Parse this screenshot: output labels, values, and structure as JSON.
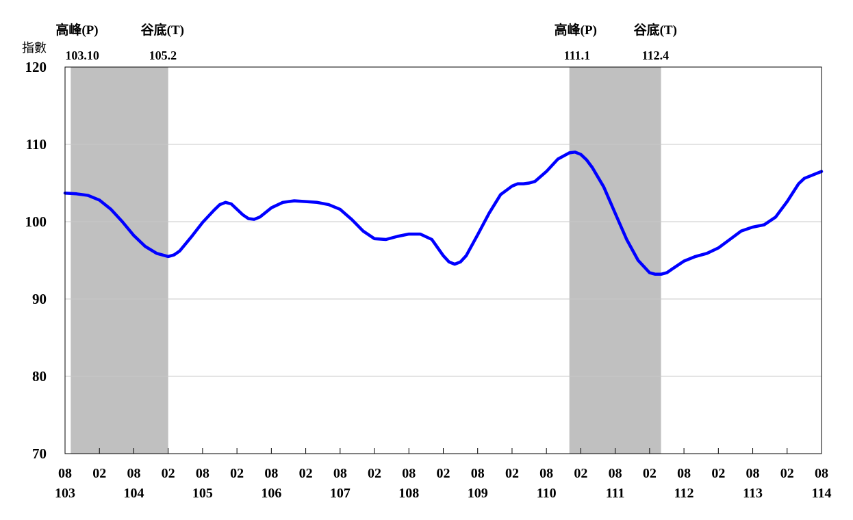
{
  "chart_data": {
    "type": "line",
    "ylabel": "指數",
    "ylim": [
      70,
      120
    ],
    "yticks": [
      70,
      80,
      90,
      100,
      110,
      120
    ],
    "grid": true,
    "x_start": "103-08",
    "x_end": "114-08",
    "x_ticks": [
      {
        "month": "08",
        "year": "103"
      },
      {
        "month": "02",
        "year": ""
      },
      {
        "month": "08",
        "year": "104"
      },
      {
        "month": "02",
        "year": ""
      },
      {
        "month": "08",
        "year": "105"
      },
      {
        "month": "02",
        "year": ""
      },
      {
        "month": "08",
        "year": "106"
      },
      {
        "month": "02",
        "year": ""
      },
      {
        "month": "08",
        "year": "107"
      },
      {
        "month": "02",
        "year": ""
      },
      {
        "month": "08",
        "year": "108"
      },
      {
        "month": "02",
        "year": ""
      },
      {
        "month": "08",
        "year": "109"
      },
      {
        "month": "02",
        "year": ""
      },
      {
        "month": "08",
        "year": "110"
      },
      {
        "month": "02",
        "year": ""
      },
      {
        "month": "08",
        "year": "111"
      },
      {
        "month": "02",
        "year": ""
      },
      {
        "month": "08",
        "year": "112"
      },
      {
        "month": "02",
        "year": ""
      },
      {
        "month": "08",
        "year": "113"
      },
      {
        "month": "02",
        "year": ""
      },
      {
        "month": "08",
        "year": "114"
      }
    ],
    "shaded_periods": [
      {
        "label_top": "高峰(P)",
        "label_value": "103.10",
        "label_trough": "谷底(T)",
        "trough_value": "105.2",
        "start": "103-09",
        "end": "105-02"
      },
      {
        "label_top": "高峰(P)",
        "label_value": "111.1",
        "label_trough": "谷底(T)",
        "trough_value": "112.4",
        "start": "110-12",
        "end": "112-04"
      }
    ],
    "series": [
      {
        "color": "#0000ff",
        "points": [
          [
            "103-08",
            103.7
          ],
          [
            "103-10",
            103.6
          ],
          [
            "103-12",
            103.4
          ],
          [
            "104-02",
            102.8
          ],
          [
            "104-04",
            101.6
          ],
          [
            "104-06",
            100.0
          ],
          [
            "104-08",
            98.2
          ],
          [
            "104-10",
            96.8
          ],
          [
            "104-12",
            95.9
          ],
          [
            "105-02",
            95.5
          ],
          [
            "105-03",
            95.7
          ],
          [
            "105-04",
            96.2
          ],
          [
            "105-06",
            98.0
          ],
          [
            "105-08",
            99.9
          ],
          [
            "105-10",
            101.5
          ],
          [
            "105-11",
            102.2
          ],
          [
            "105-12",
            102.5
          ],
          [
            "106-01",
            102.3
          ],
          [
            "106-03",
            100.9
          ],
          [
            "106-04",
            100.4
          ],
          [
            "106-05",
            100.3
          ],
          [
            "106-06",
            100.6
          ],
          [
            "106-08",
            101.8
          ],
          [
            "106-10",
            102.5
          ],
          [
            "106-12",
            102.7
          ],
          [
            "107-02",
            102.6
          ],
          [
            "107-04",
            102.5
          ],
          [
            "107-06",
            102.2
          ],
          [
            "107-08",
            101.6
          ],
          [
            "107-10",
            100.3
          ],
          [
            "107-12",
            98.8
          ],
          [
            "108-02",
            97.8
          ],
          [
            "108-04",
            97.7
          ],
          [
            "108-06",
            98.1
          ],
          [
            "108-08",
            98.4
          ],
          [
            "108-10",
            98.4
          ],
          [
            "108-12",
            97.7
          ],
          [
            "109-02",
            95.6
          ],
          [
            "109-03",
            94.8
          ],
          [
            "109-04",
            94.5
          ],
          [
            "109-05",
            94.8
          ],
          [
            "109-06",
            95.6
          ],
          [
            "109-08",
            98.3
          ],
          [
            "109-10",
            101.1
          ],
          [
            "109-12",
            103.5
          ],
          [
            "110-02",
            104.6
          ],
          [
            "110-03",
            104.9
          ],
          [
            "110-04",
            104.9
          ],
          [
            "110-05",
            105.0
          ],
          [
            "110-06",
            105.2
          ],
          [
            "110-08",
            106.5
          ],
          [
            "110-10",
            108.1
          ],
          [
            "110-12",
            108.9
          ],
          [
            "111-01",
            109.0
          ],
          [
            "111-02",
            108.7
          ],
          [
            "111-03",
            108.0
          ],
          [
            "111-04",
            107.0
          ],
          [
            "111-06",
            104.5
          ],
          [
            "111-08",
            101.1
          ],
          [
            "111-10",
            97.7
          ],
          [
            "111-12",
            95.0
          ],
          [
            "112-02",
            93.4
          ],
          [
            "112-03",
            93.2
          ],
          [
            "112-04",
            93.2
          ],
          [
            "112-05",
            93.4
          ],
          [
            "112-06",
            93.9
          ],
          [
            "112-08",
            94.9
          ],
          [
            "112-10",
            95.5
          ],
          [
            "112-12",
            95.9
          ],
          [
            "113-02",
            96.6
          ],
          [
            "113-04",
            97.7
          ],
          [
            "113-06",
            98.8
          ],
          [
            "113-08",
            99.3
          ],
          [
            "113-10",
            99.6
          ],
          [
            "113-12",
            100.6
          ],
          [
            "114-02",
            102.6
          ],
          [
            "114-04",
            104.9
          ],
          [
            "114-05",
            105.6
          ],
          [
            "114-06",
            105.9
          ],
          [
            "114-08",
            106.5
          ]
        ]
      }
    ]
  }
}
